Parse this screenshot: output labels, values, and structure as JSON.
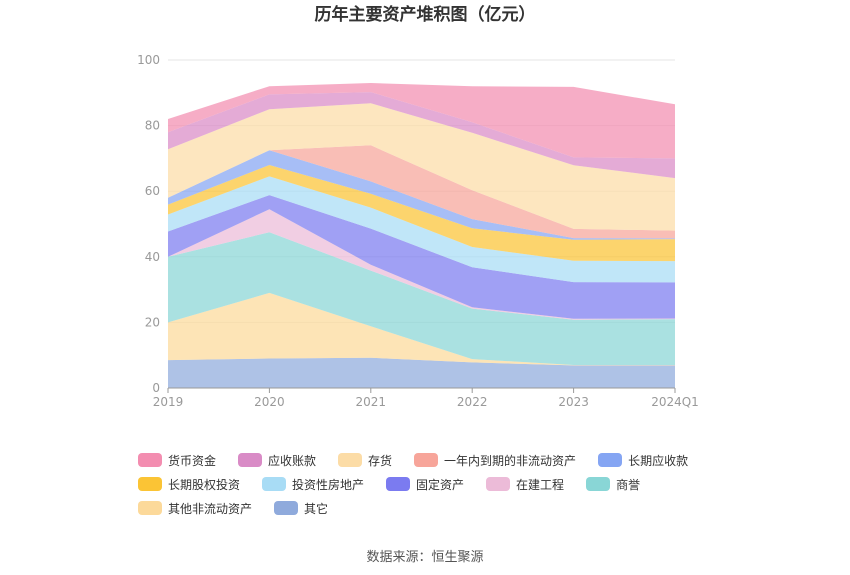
{
  "chart_data": {
    "type": "area",
    "stacked": true,
    "title": "历年主要资产堆积图（亿元）",
    "categories": [
      "2019",
      "2020",
      "2021",
      "2022",
      "2023",
      "2024Q1"
    ],
    "ylim": [
      0,
      100
    ],
    "yticks": [
      0,
      20,
      40,
      60,
      80,
      100
    ],
    "grid": true,
    "legend_position": "bottom",
    "series": [
      {
        "name": "其它",
        "color": "#8faadc",
        "values": [
          8.5,
          9.0,
          9.2,
          7.8,
          6.9,
          6.9
        ]
      },
      {
        "name": "其他非流动资产",
        "color": "#fcd99a",
        "values": [
          11.5,
          20.0,
          9.6,
          1.0,
          0.1,
          0.1
        ]
      },
      {
        "name": "商誉",
        "color": "#89d6d6",
        "values": [
          20.0,
          18.5,
          17.0,
          15.4,
          13.8,
          14.0
        ]
      },
      {
        "name": "在建工程",
        "color": "#ecbbd8",
        "values": [
          0.0,
          7.0,
          1.8,
          0.4,
          0.3,
          0.2
        ]
      },
      {
        "name": "固定资产",
        "color": "#7b7bf0",
        "values": [
          7.7,
          4.3,
          11.0,
          12.2,
          11.2,
          11.0
        ]
      },
      {
        "name": "投资性房地产",
        "color": "#a8dcf5",
        "values": [
          5.2,
          5.7,
          6.4,
          6.2,
          6.5,
          6.5
        ]
      },
      {
        "name": "长期股权投资",
        "color": "#fbc435",
        "values": [
          3.0,
          3.5,
          4.2,
          5.7,
          6.4,
          6.7
        ]
      },
      {
        "name": "长期应收款",
        "color": "#85a5f3",
        "values": [
          2.1,
          4.5,
          3.8,
          2.8,
          0.5,
          0.2
        ]
      },
      {
        "name": "一年内到期的非流动资产",
        "color": "#f7a59a",
        "values": [
          0.0,
          0.0,
          11.0,
          8.8,
          2.8,
          2.4
        ]
      },
      {
        "name": "存货",
        "color": "#fcdca6",
        "values": [
          14.8,
          12.5,
          12.8,
          17.5,
          19.4,
          16.0
        ]
      },
      {
        "name": "应收账款",
        "color": "#d98bc6",
        "values": [
          5.2,
          4.5,
          3.4,
          3.2,
          2.4,
          6.0
        ]
      },
      {
        "name": "货币资金",
        "color": "#f38db0",
        "values": [
          4.0,
          2.5,
          2.8,
          11.0,
          21.5,
          16.5
        ]
      }
    ],
    "legend_order": [
      "货币资金",
      "应收账款",
      "存货",
      "一年内到期的非流动资产",
      "长期应收款",
      "长期股权投资",
      "投资性房地产",
      "固定资产",
      "在建工程",
      "商誉",
      "其他非流动资产",
      "其它"
    ]
  },
  "source_text": "数据来源：恒生聚源"
}
